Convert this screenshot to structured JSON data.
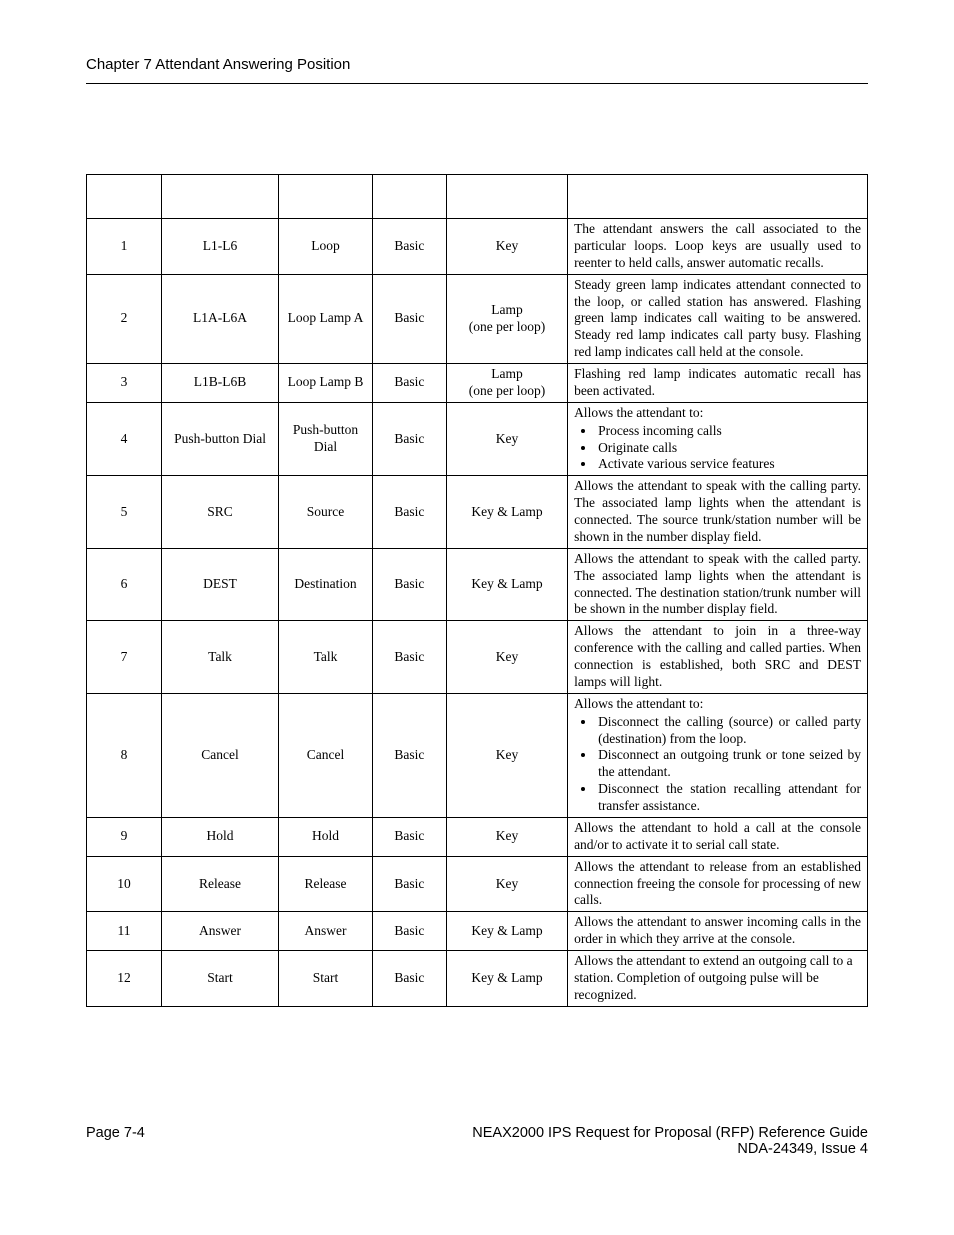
{
  "header": {
    "chapter": "Chapter 7   Attendant Answering Position"
  },
  "table": {
    "type": "table",
    "col_widths_pct": [
      9.6,
      15,
      12,
      9.5,
      15.5,
      38.4
    ],
    "border_color": "#000000",
    "font_size": 13.5,
    "rows": [
      {
        "num": "1",
        "label": "L1-L6",
        "name": "Loop",
        "class": "Basic",
        "kind": "Key",
        "desc_type": "justify",
        "desc": "The attendant answers the call associated to the particular loops. Loop keys are usually used to reenter to held calls, answer automatic recalls."
      },
      {
        "num": "2",
        "label": "L1A-L6A",
        "name": "Loop Lamp A",
        "class": "Basic",
        "kind": "Lamp\n(one per loop)",
        "desc_type": "justify",
        "desc": "Steady green lamp indicates attendant connected to the loop, or called station has answered. Flashing green lamp indicates call waiting to be answered. Steady red lamp indicates call party busy. Flashing red lamp indicates call held at the console."
      },
      {
        "num": "3",
        "label": "L1B-L6B",
        "name": "Loop Lamp B",
        "class": "Basic",
        "kind": "Lamp\n(one per loop)",
        "desc_type": "justify",
        "desc": "Flashing red lamp indicates automatic recall has been activated."
      },
      {
        "num": "4",
        "label": "Push-button Dial",
        "name": "Push-button Dial",
        "class": "Basic",
        "kind": "Key",
        "desc_type": "list",
        "lead": "Allows the attendant to:",
        "items": [
          "Process incoming calls",
          "Originate calls",
          "Activate various service features"
        ]
      },
      {
        "num": "5",
        "label": "SRC",
        "name": "Source",
        "class": "Basic",
        "kind": "Key & Lamp",
        "desc_type": "justify",
        "desc": "Allows the attendant to speak with the calling party. The associated lamp lights when the attendant is connected. The source trunk/station number will be shown in the number display field."
      },
      {
        "num": "6",
        "label": "DEST",
        "name": "Destination",
        "class": "Basic",
        "kind": "Key & Lamp",
        "desc_type": "justify",
        "desc": "Allows the attendant to speak with the called party. The associated lamp lights when the attendant is connected. The destination station/trunk number will be shown in the number display field."
      },
      {
        "num": "7",
        "label": "Talk",
        "name": "Talk",
        "class": "Basic",
        "kind": "Key",
        "desc_type": "justify",
        "desc": "Allows the attendant to join in a three-way conference with the calling and called parties. When connection is established, both SRC and DEST lamps will light."
      },
      {
        "num": "8",
        "label": "Cancel",
        "name": "Cancel",
        "class": "Basic",
        "kind": "Key",
        "desc_type": "list",
        "lead": "Allows the attendant to:",
        "items": [
          "Disconnect the calling (source) or called party (destination) from the loop.",
          "Disconnect an outgoing trunk or tone seized by the attendant.",
          "Disconnect the station recalling attendant for transfer assistance."
        ]
      },
      {
        "num": "9",
        "label": "Hold",
        "name": "Hold",
        "class": "Basic",
        "kind": "Key",
        "desc_type": "justify",
        "desc": "Allows the attendant to hold a call at the console and/or to activate it to serial call state."
      },
      {
        "num": "10",
        "label": "Release",
        "name": "Release",
        "class": "Basic",
        "kind": "Key",
        "desc_type": "justify",
        "desc": "Allows the attendant to release from an established connection freeing the console for processing of new calls."
      },
      {
        "num": "11",
        "label": "Answer",
        "name": "Answer",
        "class": "Basic",
        "kind": "Key & Lamp",
        "desc_type": "justify",
        "desc": "Allows the attendant to answer incoming calls in the order in which they arrive at the console."
      },
      {
        "num": "12",
        "label": "Start",
        "name": "Start",
        "class": "Basic",
        "kind": "Key & Lamp",
        "desc_type": "left",
        "desc": "Allows the attendant to extend an outgoing call to a station. Completion of outgoing pulse will be recognized."
      }
    ]
  },
  "footer": {
    "page": "Page 7-4",
    "title": "NEAX2000 IPS Request for Proposal (RFP) Reference Guide",
    "issue": "NDA-24349, Issue 4"
  }
}
